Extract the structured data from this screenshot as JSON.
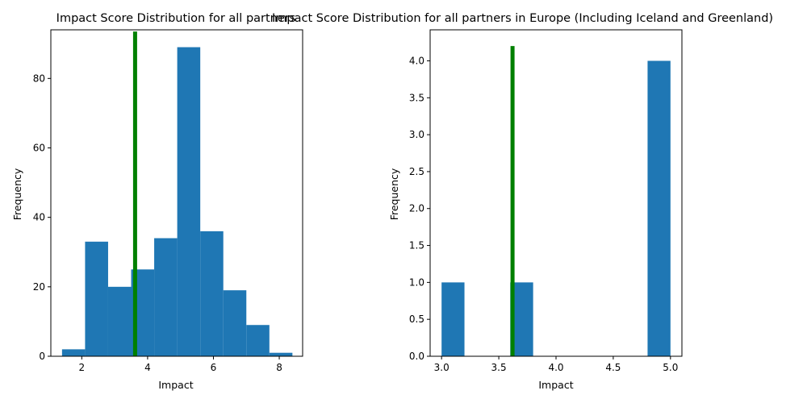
{
  "chart_data": [
    {
      "type": "bar",
      "title": "Impact Score Distribution for all partners",
      "xlabel": "Impact",
      "ylabel": "Frequency",
      "xlim": [
        1.06,
        8.71
      ],
      "ylim": [
        0,
        94
      ],
      "x_ticks": [
        2,
        4,
        6,
        8
      ],
      "x_tick_labels": [
        "2",
        "4",
        "6",
        "8"
      ],
      "y_ticks": [
        0,
        20,
        40,
        60,
        80
      ],
      "y_tick_labels": [
        "0",
        "20",
        "40",
        "60",
        "80"
      ],
      "bins": [
        {
          "x0": 1.4,
          "x1": 2.1,
          "value": 2
        },
        {
          "x0": 2.1,
          "x1": 2.8,
          "value": 33
        },
        {
          "x0": 2.8,
          "x1": 3.5,
          "value": 20
        },
        {
          "x0": 3.5,
          "x1": 4.2,
          "value": 25
        },
        {
          "x0": 4.2,
          "x1": 4.9,
          "value": 34
        },
        {
          "x0": 4.9,
          "x1": 5.6,
          "value": 89
        },
        {
          "x0": 5.6,
          "x1": 6.3,
          "value": 36
        },
        {
          "x0": 6.3,
          "x1": 7.0,
          "value": 19
        },
        {
          "x0": 7.0,
          "x1": 7.7,
          "value": 9
        },
        {
          "x0": 7.7,
          "x1": 8.4,
          "value": 1
        }
      ],
      "mean_line": {
        "x": 3.62,
        "y_top": 93.5,
        "color": "#008000"
      },
      "bar_color": "#1f77b4"
    },
    {
      "type": "bar",
      "title": "Impact Score Distribution for all partners in Europe (Including Iceland and Greenland)",
      "xlabel": "Impact",
      "ylabel": "Frequency",
      "xlim": [
        2.9,
        5.1
      ],
      "ylim": [
        0,
        4.42
      ],
      "x_ticks": [
        3.0,
        3.5,
        4.0,
        4.5,
        5.0
      ],
      "x_tick_labels": [
        "3.0",
        "3.5",
        "4.0",
        "4.5",
        "5.0"
      ],
      "y_ticks": [
        0,
        0.5,
        1.0,
        1.5,
        2.0,
        2.5,
        3.0,
        3.5,
        4.0
      ],
      "y_tick_labels": [
        "0.0",
        "0.5",
        "1.0",
        "1.5",
        "2.0",
        "2.5",
        "3.0",
        "3.5",
        "4.0"
      ],
      "bins": [
        {
          "x0": 3.0,
          "x1": 3.2,
          "value": 1
        },
        {
          "x0": 3.2,
          "x1": 3.4,
          "value": 0
        },
        {
          "x0": 3.4,
          "x1": 3.6,
          "value": 0
        },
        {
          "x0": 3.6,
          "x1": 3.8,
          "value": 1
        },
        {
          "x0": 3.8,
          "x1": 4.0,
          "value": 0
        },
        {
          "x0": 4.0,
          "x1": 4.2,
          "value": 0
        },
        {
          "x0": 4.2,
          "x1": 4.4,
          "value": 0
        },
        {
          "x0": 4.4,
          "x1": 4.6,
          "value": 0
        },
        {
          "x0": 4.6,
          "x1": 4.8,
          "value": 0
        },
        {
          "x0": 4.8,
          "x1": 5.0,
          "value": 4
        }
      ],
      "mean_line": {
        "x": 3.62,
        "y_top": 4.2,
        "color": "#008000"
      },
      "bar_color": "#1f77b4"
    }
  ]
}
